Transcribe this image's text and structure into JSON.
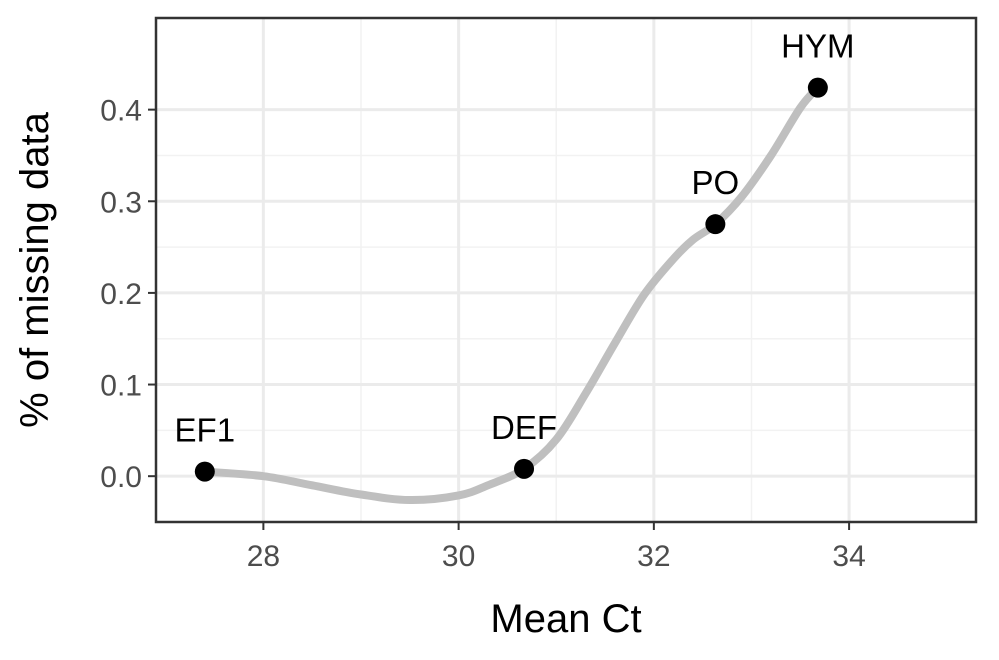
{
  "chart_data": {
    "type": "scatter",
    "xlabel": "Mean Ct",
    "ylabel": "% of missing data",
    "xlim": [
      26.9,
      35.3
    ],
    "ylim": [
      -0.05,
      0.5
    ],
    "x_ticks": [
      28,
      30,
      32,
      34
    ],
    "y_ticks": [
      0.0,
      0.1,
      0.2,
      0.3,
      0.4
    ],
    "x_tick_labels": [
      "28",
      "30",
      "32",
      "34"
    ],
    "y_tick_labels": [
      "0.0",
      "0.1",
      "0.2",
      "0.3",
      "0.4"
    ],
    "grid": true,
    "points": [
      {
        "label": "EF1",
        "x": 27.4,
        "y": 0.005
      },
      {
        "label": "DEF",
        "x": 30.67,
        "y": 0.008
      },
      {
        "label": "PO",
        "x": 32.63,
        "y": 0.275
      },
      {
        "label": "HYM",
        "x": 33.68,
        "y": 0.424
      }
    ],
    "smooth_curve": {
      "color": "#bfbfbf",
      "x": [
        27.4,
        28.0,
        28.5,
        29.0,
        29.5,
        30.0,
        30.3,
        30.67,
        31.0,
        31.3,
        31.6,
        31.9,
        32.2,
        32.4,
        32.63,
        32.9,
        33.2,
        33.5,
        33.68
      ],
      "y": [
        0.005,
        0.0,
        -0.01,
        -0.02,
        -0.026,
        -0.021,
        -0.01,
        0.008,
        0.04,
        0.09,
        0.145,
        0.198,
        0.237,
        0.258,
        0.275,
        0.305,
        0.35,
        0.402,
        0.424
      ]
    },
    "point_color": "#000000"
  }
}
